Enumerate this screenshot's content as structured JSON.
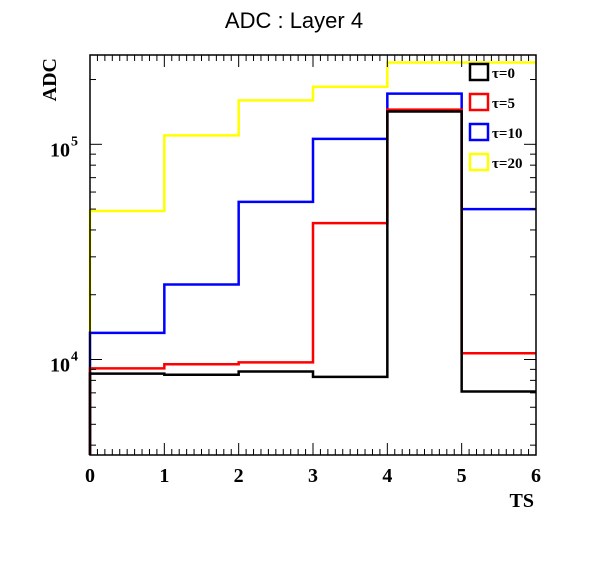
{
  "chart_data": {
    "type": "line",
    "step": true,
    "title": "ADC : Layer 4",
    "xlabel": "TS",
    "ylabel": "ADC",
    "xlim": [
      0,
      6
    ],
    "ylim": [
      3600,
      260000
    ],
    "yscale": "log",
    "x_ticks": [
      "0",
      "1",
      "2",
      "3",
      "4",
      "5",
      "6"
    ],
    "y_ticks": [
      {
        "value": 10000,
        "base": "10",
        "exp": "4"
      },
      {
        "value": 100000,
        "base": "10",
        "exp": "5"
      }
    ],
    "grid": false,
    "legend_position": "top-right",
    "series": [
      {
        "name": "τ=0",
        "color": "#000000",
        "values": [
          8600,
          8500,
          8800,
          8300,
          142000,
          7100
        ]
      },
      {
        "name": "τ=5",
        "color": "#ff0000",
        "values": [
          9100,
          9500,
          9700,
          43000,
          145000,
          10700
        ]
      },
      {
        "name": "τ=10",
        "color": "#0000ff",
        "values": [
          13300,
          22300,
          54000,
          106000,
          172000,
          50000
        ]
      },
      {
        "name": "τ=20",
        "color": "#ffff00",
        "values": [
          49000,
          110000,
          160000,
          185000,
          240000,
          240000
        ]
      }
    ]
  }
}
